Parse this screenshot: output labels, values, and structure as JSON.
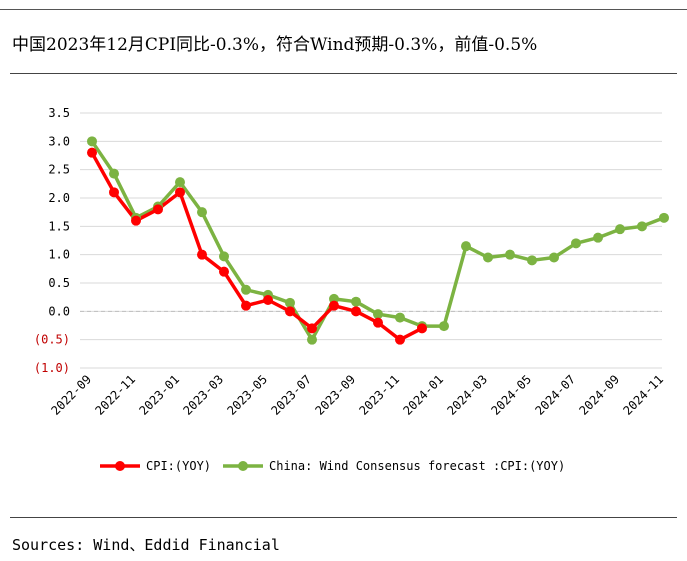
{
  "title": "中国2023年12月CPI同比-0.3%，符合Wind预期-0.3%，前值-0.5%",
  "source": "Sources: Wind、Eddid Financial",
  "colors": {
    "cpi": "#ff0000",
    "forecast": "#7cb342",
    "negative_label": "#c00000",
    "grid": "#d9d9d9"
  },
  "chart_data": {
    "type": "line",
    "x": [
      "2022-09",
      "2022-10",
      "2022-11",
      "2022-12",
      "2023-01",
      "2023-02",
      "2023-03",
      "2023-04",
      "2023-05",
      "2023-06",
      "2023-07",
      "2023-08",
      "2023-09",
      "2023-10",
      "2023-11",
      "2023-12",
      "2024-01",
      "2024-02",
      "2024-03",
      "2024-04",
      "2024-05",
      "2024-06",
      "2024-07",
      "2024-08",
      "2024-09",
      "2024-10",
      "2024-11"
    ],
    "x_tick_labels": [
      "2022-09",
      "2022-11",
      "2023-01",
      "2023-03",
      "2023-05",
      "2023-07",
      "2023-09",
      "2023-11",
      "2024-01",
      "2024-03",
      "2024-05",
      "2024-07",
      "2024-09",
      "2024-11"
    ],
    "y_tick_labels": [
      "3.5",
      "3.0",
      "2.5",
      "2.0",
      "1.5",
      "1.0",
      "0.5",
      "0.0",
      "(0.5)",
      "(1.0)"
    ],
    "y_tick_values": [
      3.5,
      3.0,
      2.5,
      2.0,
      1.5,
      1.0,
      0.5,
      0.0,
      -0.5,
      -1.0
    ],
    "ylim": [
      -1.0,
      3.5
    ],
    "grid": true,
    "legend_position": "bottom",
    "series": [
      {
        "name": "CPI:(YOY)",
        "color": "#ff0000",
        "values": [
          2.8,
          2.1,
          1.6,
          1.8,
          2.1,
          1.0,
          0.7,
          0.1,
          0.2,
          0.0,
          -0.3,
          0.1,
          0.0,
          -0.2,
          -0.5,
          -0.3,
          null,
          null,
          null,
          null,
          null,
          null,
          null,
          null,
          null,
          null,
          null
        ]
      },
      {
        "name": "China: Wind Consensus forecast :CPI:(YOY)",
        "color": "#7cb342",
        "values": [
          3.0,
          2.43,
          1.65,
          1.85,
          2.28,
          1.75,
          0.97,
          0.38,
          0.29,
          0.15,
          -0.5,
          0.22,
          0.17,
          -0.05,
          -0.11,
          -0.26,
          -0.26,
          1.15,
          0.95,
          1.0,
          0.9,
          0.95,
          1.2,
          1.3,
          1.45,
          1.5,
          1.65
        ]
      }
    ]
  }
}
